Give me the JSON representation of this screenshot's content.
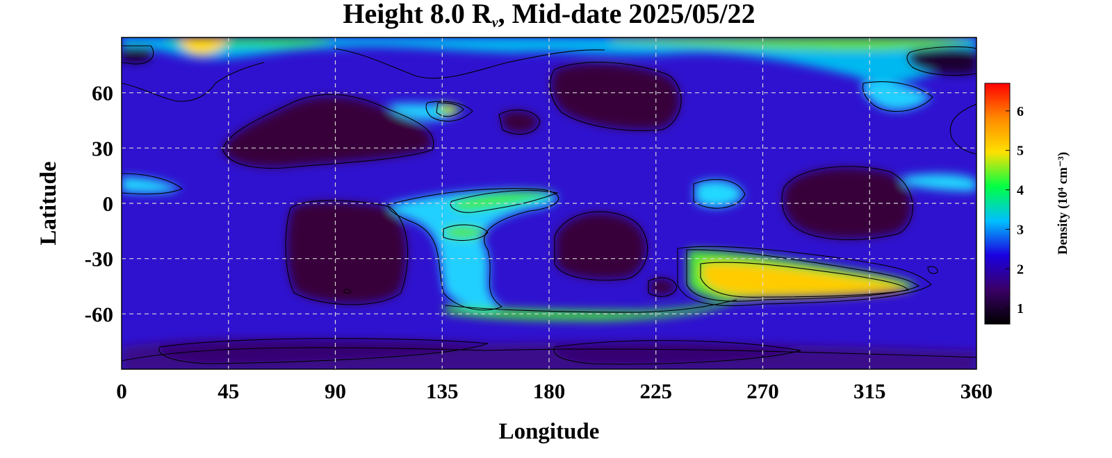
{
  "title": {
    "prefix": "Height 8.0 R",
    "subscript": "v",
    "suffix": ", Mid-date 2025/05/22"
  },
  "chart_data": {
    "type": "heatmap",
    "xlabel": "Longitude",
    "ylabel": "Latitude",
    "xlim": [
      0,
      360
    ],
    "ylim": [
      -90,
      90
    ],
    "xticks": [
      0,
      45,
      90,
      135,
      180,
      225,
      270,
      315,
      360
    ],
    "yticks": [
      60,
      30,
      0,
      -30,
      -60
    ],
    "grid": true,
    "colorbar": {
      "label": "Density (10⁴ cm⁻³)",
      "range": [
        0.6,
        6.7
      ],
      "ticks": [
        1,
        2,
        3,
        4,
        5,
        6
      ],
      "colormap": [
        "#000000",
        "#3a0066",
        "#1a00e0",
        "#00c0ff",
        "#00ff44",
        "#ffe000",
        "#ff8800",
        "#ff0000"
      ]
    },
    "features": [
      {
        "type": "high",
        "lon": [
          255,
          335
        ],
        "lat": [
          -48,
          -38
        ],
        "value": 5.8
      },
      {
        "type": "high",
        "lon": [
          25,
          45
        ],
        "lat": [
          80,
          90
        ],
        "value": 5.6
      },
      {
        "type": "high",
        "lon": [
          140,
          150
        ],
        "lat": [
          48,
          52
        ],
        "value": 4.5
      },
      {
        "type": "low",
        "lon": [
          60,
          130
        ],
        "lat": [
          15,
          60
        ],
        "value": 0.8
      },
      {
        "type": "low",
        "lon": [
          75,
          130
        ],
        "lat": [
          -60,
          -5
        ],
        "value": 0.8
      },
      {
        "type": "low",
        "lon": [
          185,
          240
        ],
        "lat": [
          -40,
          -5
        ],
        "value": 0.8
      },
      {
        "type": "low",
        "lon": [
          285,
          335
        ],
        "lat": [
          -15,
          20
        ],
        "value": 0.8
      },
      {
        "type": "low",
        "lon": [
          0,
          10
        ],
        "lat": [
          80,
          85
        ],
        "value": 0.7
      },
      {
        "type": "low",
        "lon": [
          345,
          360
        ],
        "lat": [
          70,
          85
        ],
        "value": 0.7
      }
    ]
  }
}
